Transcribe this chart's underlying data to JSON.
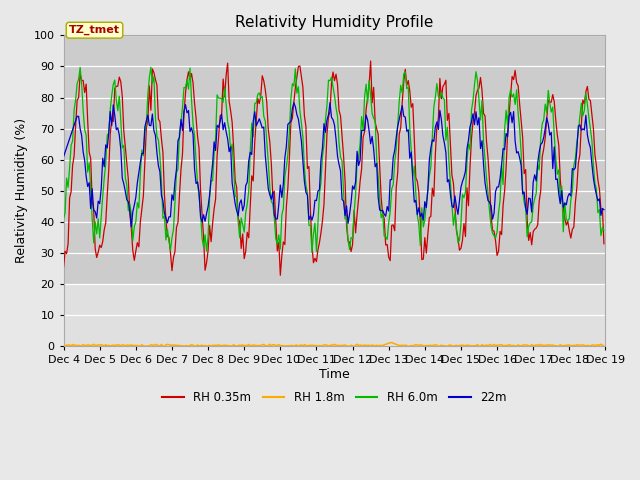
{
  "title": "Relativity Humidity Profile",
  "xlabel": "Time",
  "ylabel": "Relativity Humidity (%)",
  "ylim": [
    0,
    100
  ],
  "xlim": [
    0,
    360
  ],
  "x_tick_labels": [
    "Dec 4",
    "Dec 5",
    "Dec 6",
    "Dec 7",
    "Dec 8",
    "Dec 9",
    "Dec 10",
    "Dec 11",
    "Dec 12",
    "Dec 13",
    "Dec 14",
    "Dec 15",
    "Dec 16",
    "Dec 17",
    "Dec 18",
    "Dec 19"
  ],
  "x_tick_positions": [
    0,
    24,
    48,
    72,
    96,
    120,
    144,
    168,
    192,
    216,
    240,
    264,
    288,
    312,
    336,
    360
  ],
  "annotation_text": "TZ_tmet",
  "colors": {
    "RH 0.35m": "#cc0000",
    "RH 1.8m": "#ffaa00",
    "RH 6.0m": "#00bb00",
    "22m": "#0000cc"
  },
  "legend_labels": [
    "RH 0.35m",
    "RH 1.8m",
    "RH 6.0m",
    "22m"
  ],
  "fig_bg_color": "#e8e8e8",
  "plot_bg_color": "#cccccc",
  "plot_bg_light": "#e0e0e0",
  "grid_color": "#ffffff",
  "title_fontsize": 11,
  "label_fontsize": 9,
  "tick_fontsize": 8,
  "yticks": [
    0,
    10,
    20,
    30,
    40,
    50,
    60,
    70,
    80,
    90,
    100
  ]
}
